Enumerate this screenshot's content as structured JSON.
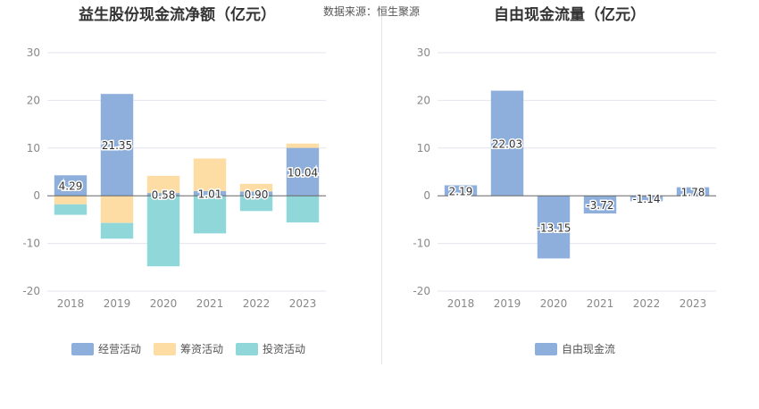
{
  "source_label": "数据来源：恒生聚源",
  "colors": {
    "operating": "#8eaedb",
    "financing": "#fddda4",
    "investing": "#8fd7d9",
    "fcf": "#8eaedb"
  },
  "chart_data": [
    {
      "type": "bar",
      "stacked": true,
      "title": "益生股份现金流净额（亿元）",
      "categories": [
        "2018",
        "2019",
        "2020",
        "2021",
        "2022",
        "2023"
      ],
      "ylim": [
        -20,
        30
      ],
      "yticks": [
        "30",
        "20",
        "10",
        "0",
        "-10",
        "-20"
      ],
      "grid": true,
      "legend_position": "bottom",
      "series": [
        {
          "name": "经营活动",
          "values": [
            4.29,
            21.35,
            0.58,
            1.01,
            0.9,
            10.04
          ],
          "labels": [
            "4.29",
            "21.35",
            "0.58",
            "1.01",
            "0.90",
            "10.04"
          ]
        },
        {
          "name": "筹资活动",
          "values": [
            -1.8,
            -5.7,
            3.6,
            6.8,
            1.6,
            0.9
          ]
        },
        {
          "name": "投资活动",
          "values": [
            -2.2,
            -3.3,
            -14.8,
            -7.9,
            -3.2,
            -5.6
          ]
        }
      ]
    },
    {
      "type": "bar",
      "title": "自由现金流量（亿元）",
      "categories": [
        "2018",
        "2019",
        "2020",
        "2021",
        "2022",
        "2023"
      ],
      "ylim": [
        -20,
        30
      ],
      "yticks": [
        "30",
        "20",
        "10",
        "0",
        "-10",
        "-20"
      ],
      "grid": true,
      "legend_position": "bottom",
      "series": [
        {
          "name": "自由现金流",
          "values": [
            2.19,
            22.03,
            -13.15,
            -3.72,
            -1.14,
            1.78
          ],
          "labels": [
            "2.19",
            "22.03",
            "-13.15",
            "-3.72",
            "-1.14",
            "1.78"
          ]
        }
      ]
    }
  ]
}
